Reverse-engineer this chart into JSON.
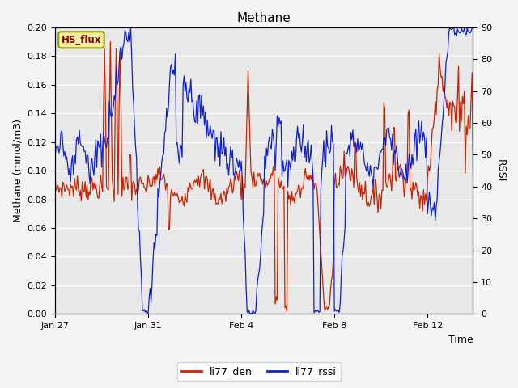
{
  "title": "Methane",
  "xlabel": "Time",
  "ylabel_left": "Methane (mmol/m3)",
  "ylabel_right": "RSSI",
  "ylim_left": [
    0.0,
    0.2
  ],
  "ylim_right": [
    0,
    90
  ],
  "yticks_left": [
    0.0,
    0.02,
    0.04,
    0.06,
    0.08,
    0.1,
    0.12,
    0.14,
    0.16,
    0.18,
    0.2
  ],
  "yticks_right": [
    0,
    10,
    20,
    30,
    40,
    50,
    60,
    70,
    80,
    90
  ],
  "xtick_labels": [
    "Jan 27",
    "Jan 31",
    "Feb 4",
    "Feb 8",
    "Feb 12"
  ],
  "xtick_positions": [
    0,
    96,
    192,
    288,
    384
  ],
  "color_red": "#cc2200",
  "color_blue": "#1122cc",
  "legend_label_red": "li77_den",
  "legend_label_blue": "li77_rssi",
  "box_label": "HS_flux",
  "fig_bg_color": "#f5f5f5",
  "plot_bg_color": "#e8e8e8",
  "grid_color": "#ffffff",
  "n_points": 432
}
